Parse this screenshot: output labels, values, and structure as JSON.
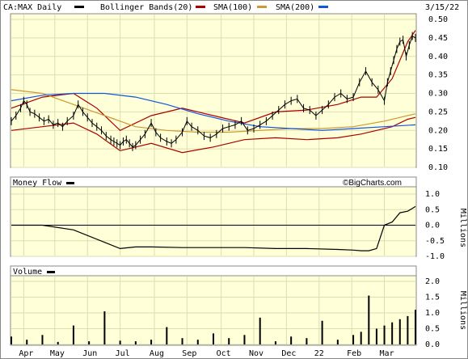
{
  "chart_data": {
    "type": "line",
    "header": {
      "symbol_label": "CA:MAX Daily",
      "bollinger_label": "Bollinger Bands(20)",
      "sma100_label": "SMA(100)",
      "sma200_label": "SMA(200)",
      "date": "3/15/22"
    },
    "colors": {
      "panel_bg": "#ffffd8",
      "grid": "#ddddb4",
      "price": "#000000",
      "bollinger": "#aa0000",
      "sma100": "#cc9933",
      "sma200": "#1155dd",
      "moneyflow": "#000000",
      "volume": "#000000"
    },
    "price_panel": {
      "y_ticks": [
        "0.10",
        "0.15",
        "0.20",
        "0.25",
        "0.30",
        "0.35",
        "0.40",
        "0.45",
        "0.50"
      ],
      "ylim": [
        0.1,
        0.5
      ]
    },
    "money_flow_panel": {
      "title": "Money Flow",
      "y_ticks": [
        "1.0",
        "0.5",
        "0.0",
        "-0.5",
        "-1.0"
      ],
      "units": "Millions",
      "watermark": "©BigCharts.com"
    },
    "volume_panel": {
      "title": "Volume",
      "y_ticks": [
        "2.0",
        "1.5",
        "1.0",
        "0.5",
        "0.0"
      ],
      "units": "Millions"
    },
    "x_labels": [
      "Apr",
      "May",
      "Jun",
      "Jul",
      "Aug",
      "Sep",
      "Oct",
      "Nov",
      "Dec",
      "22",
      "Feb",
      "Mar"
    ],
    "series": [
      {
        "name": "CA:MAX Daily",
        "x": [
          0,
          3,
          6,
          8,
          10,
          12,
          15,
          18,
          21,
          24,
          27,
          30,
          33,
          36,
          40,
          43,
          46,
          49,
          52,
          55,
          58,
          61,
          64,
          66,
          68,
          70,
          72,
          74,
          76,
          78,
          80,
          83,
          86,
          90,
          93,
          96,
          100,
          103,
          106,
          110,
          113,
          116,
          120,
          124,
          128,
          132,
          136,
          140,
          144,
          148,
          152,
          156,
          160,
          164,
          168,
          172,
          176,
          180,
          184,
          188,
          192,
          196,
          200,
          204,
          208,
          212,
          216,
          220,
          224,
          228,
          232,
          236,
          240,
          242,
          244,
          246,
          248,
          250,
          252,
          254,
          256,
          258,
          260
        ],
        "values": [
          0.225,
          0.24,
          0.26,
          0.28,
          0.27,
          0.25,
          0.245,
          0.235,
          0.225,
          0.23,
          0.215,
          0.22,
          0.21,
          0.225,
          0.24,
          0.27,
          0.25,
          0.235,
          0.22,
          0.21,
          0.2,
          0.185,
          0.175,
          0.17,
          0.165,
          0.16,
          0.17,
          0.175,
          0.165,
          0.155,
          0.16,
          0.175,
          0.19,
          0.22,
          0.195,
          0.18,
          0.17,
          0.165,
          0.175,
          0.195,
          0.225,
          0.21,
          0.2,
          0.185,
          0.18,
          0.19,
          0.205,
          0.21,
          0.215,
          0.225,
          0.2,
          0.205,
          0.215,
          0.225,
          0.24,
          0.255,
          0.27,
          0.28,
          0.285,
          0.26,
          0.255,
          0.24,
          0.255,
          0.27,
          0.29,
          0.3,
          0.285,
          0.29,
          0.33,
          0.36,
          0.33,
          0.31,
          0.28,
          0.33,
          0.36,
          0.39,
          0.42,
          0.44,
          0.445,
          0.4,
          0.43,
          0.455,
          0.45
        ]
      },
      {
        "name": "Bollinger Bands(20)",
        "x": [
          0,
          20,
          40,
          55,
          70,
          90,
          110,
          130,
          150,
          170,
          190,
          210,
          225,
          235,
          245,
          255,
          260
        ],
        "values": [
          0.26,
          0.29,
          0.3,
          0.26,
          0.2,
          0.24,
          0.26,
          0.24,
          0.22,
          0.25,
          0.255,
          0.27,
          0.29,
          0.29,
          0.34,
          0.44,
          0.47
        ]
      },
      {
        "name": "Bollinger Bands(20)",
        "x": [
          0,
          20,
          40,
          55,
          70,
          90,
          110,
          130,
          150,
          170,
          190,
          210,
          225,
          235,
          245,
          255,
          260
        ],
        "values": [
          0.2,
          0.21,
          0.22,
          0.19,
          0.145,
          0.165,
          0.14,
          0.155,
          0.175,
          0.18,
          0.175,
          0.18,
          0.19,
          0.2,
          0.21,
          0.23,
          0.235
        ]
      },
      {
        "name": "SMA(100)",
        "x": [
          0,
          20,
          40,
          60,
          80,
          100,
          120,
          140,
          160,
          180,
          200,
          220,
          240,
          260
        ],
        "values": [
          0.31,
          0.3,
          0.27,
          0.24,
          0.21,
          0.2,
          0.195,
          0.195,
          0.2,
          0.205,
          0.205,
          0.21,
          0.225,
          0.245
        ]
      },
      {
        "name": "SMA(200)",
        "x": [
          0,
          20,
          40,
          60,
          80,
          100,
          120,
          140,
          160,
          180,
          200,
          220,
          240,
          260
        ],
        "values": [
          0.28,
          0.295,
          0.3,
          0.3,
          0.29,
          0.27,
          0.245,
          0.225,
          0.21,
          0.205,
          0.2,
          0.205,
          0.21,
          0.215
        ]
      },
      {
        "name": "Money Flow",
        "x": [
          0,
          20,
          40,
          60,
          70,
          80,
          90,
          110,
          130,
          150,
          170,
          190,
          210,
          220,
          225,
          230,
          235,
          240,
          245,
          250,
          255,
          260
        ],
        "values": [
          0.0,
          0.0,
          -0.15,
          -0.55,
          -0.75,
          -0.7,
          -0.7,
          -0.72,
          -0.72,
          -0.72,
          -0.75,
          -0.75,
          -0.78,
          -0.8,
          -0.82,
          -0.82,
          -0.75,
          0.0,
          0.1,
          0.4,
          0.45,
          0.6
        ]
      },
      {
        "name": "Volume",
        "x": [
          0,
          10,
          20,
          30,
          40,
          50,
          60,
          70,
          80,
          90,
          100,
          110,
          120,
          130,
          140,
          150,
          160,
          170,
          180,
          190,
          200,
          210,
          220,
          225,
          230,
          235,
          240,
          245,
          250,
          255,
          260
        ],
        "values": [
          0.25,
          0.15,
          0.3,
          0.08,
          0.6,
          0.1,
          1.05,
          0.12,
          0.1,
          0.15,
          0.55,
          0.2,
          0.15,
          0.35,
          0.2,
          0.3,
          0.85,
          0.1,
          0.25,
          0.2,
          0.75,
          0.15,
          0.3,
          0.4,
          1.55,
          0.5,
          0.6,
          0.7,
          0.8,
          0.9,
          1.1
        ]
      }
    ]
  }
}
